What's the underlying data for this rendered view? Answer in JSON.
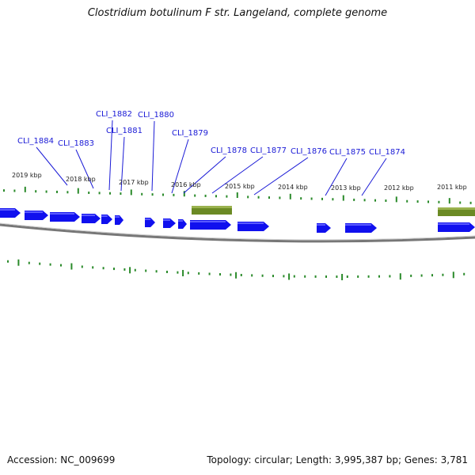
{
  "title": "Clostridium botulinum F str. Langeland, complete genome",
  "footer": {
    "accession": "Accession: NC_009699",
    "stats": "Topology: circular; Length: 3,995,387 bp; Genes: 3,781"
  },
  "colors": {
    "gene": "#1010ee",
    "feature": "#6b8a24",
    "tick": "#2a8a2a",
    "backbone": "#777777",
    "label": "#1a1ad6"
  },
  "kbp_labels": [
    "2019 kbp",
    "2018 kbp",
    "2017 kbp",
    "2016 kbp",
    "2015 kbp",
    "2014 kbp",
    "2013 kbp",
    "2012 kbp",
    "2011 kbp"
  ],
  "gene_labels": [
    "CLI_1884",
    "CLI_1883",
    "CLI_1882",
    "CLI_1881",
    "CLI_1880",
    "CLI_1879",
    "CLI_1878",
    "CLI_1877",
    "CLI_1876",
    "CLI_1875",
    "CLI_1874"
  ]
}
